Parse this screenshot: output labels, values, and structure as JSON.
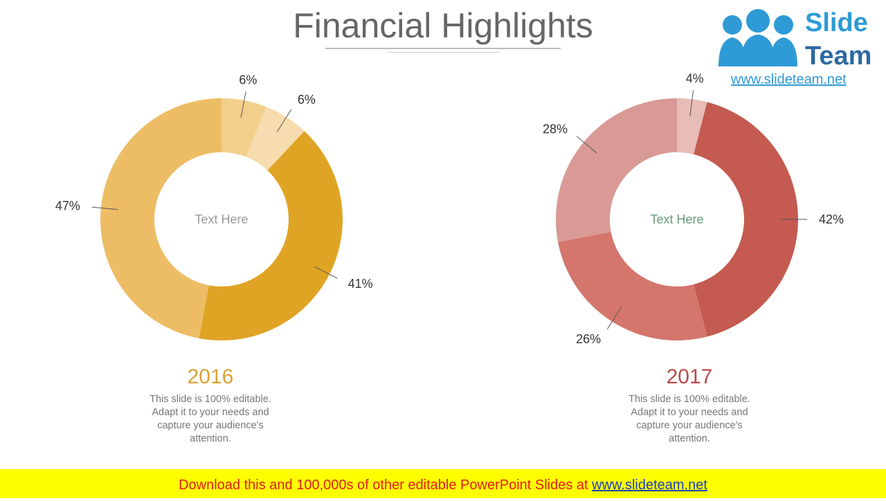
{
  "header": {
    "title": "Financial Highlights"
  },
  "logo": {
    "line1": "Slide",
    "line2": "Team",
    "url": "www.slideteam.net"
  },
  "chart_data": [
    {
      "type": "donut",
      "title": "2016",
      "title_color": "#dba334",
      "center_text": "Text Here",
      "center_color": "#999999",
      "values": [
        6,
        6,
        41,
        47
      ],
      "value_labels": [
        "6%",
        "6%",
        "41%",
        "47%"
      ],
      "colors": [
        "#f2cf8a",
        "#f6dcae",
        "#e0a424",
        "#edbd66"
      ],
      "caption": "This slide is 100% editable. Adapt it to your needs and capture your audience's attention."
    },
    {
      "type": "donut",
      "title": "2017",
      "title_color": "#b84a4a",
      "center_text": "Text Here",
      "center_color": "#6a9a7a",
      "values": [
        4,
        42,
        26,
        28
      ],
      "value_labels": [
        "4%",
        "42%",
        "26%",
        "28%"
      ],
      "colors": [
        "#e8bcb7",
        "#c45a50",
        "#d4766c",
        "#d99a95"
      ],
      "caption": "This slide is 100% editable. Adapt it to your needs and capture your audience's attention."
    }
  ],
  "footer": {
    "text": "Download this and 100,000s of other editable PowerPoint Slides at",
    "link": "www.slideteam.net"
  }
}
